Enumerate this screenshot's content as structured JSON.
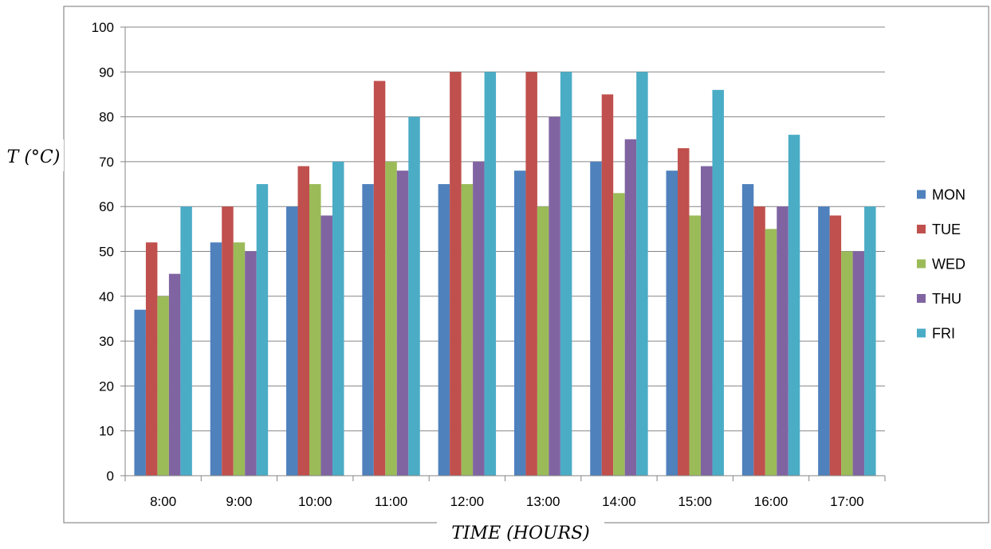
{
  "chart_data": {
    "type": "bar",
    "title": "",
    "xlabel": "TIME (HOURS)",
    "ylabel": "T (°C)",
    "ylim": [
      0,
      100
    ],
    "yticks": [
      0,
      10,
      20,
      30,
      40,
      50,
      60,
      70,
      80,
      90,
      100
    ],
    "grid": true,
    "legend_position": "right",
    "categories": [
      "8:00",
      "9:00",
      "10:00",
      "11:00",
      "12:00",
      "13:00",
      "14:00",
      "15:00",
      "16:00",
      "17:00"
    ],
    "series": [
      {
        "name": "MON",
        "color": "#4F81BD",
        "values": [
          37,
          52,
          60,
          65,
          65,
          68,
          70,
          68,
          65,
          60
        ]
      },
      {
        "name": "TUE",
        "color": "#C0504D",
        "values": [
          52,
          60,
          69,
          88,
          90,
          90,
          85,
          73,
          60,
          58
        ]
      },
      {
        "name": "WED",
        "color": "#9BBB59",
        "values": [
          40,
          52,
          65,
          70,
          65,
          60,
          63,
          58,
          55,
          50
        ]
      },
      {
        "name": "THU",
        "color": "#8064A2",
        "values": [
          45,
          50,
          58,
          68,
          70,
          80,
          75,
          69,
          60,
          50
        ]
      },
      {
        "name": "FRI",
        "color": "#4BACC6",
        "values": [
          60,
          65,
          70,
          80,
          90,
          90,
          90,
          86,
          76,
          60
        ]
      }
    ]
  }
}
